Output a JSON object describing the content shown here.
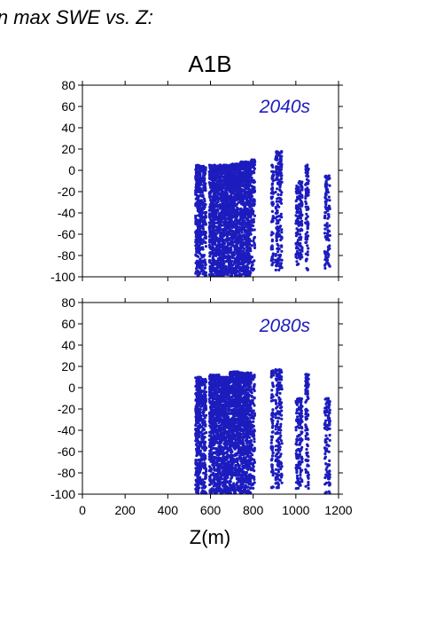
{
  "figure": {
    "title": "in max SWE vs. Z:",
    "subtitle": "A1B",
    "xlabel": "Z(m)"
  },
  "chart_data": [
    {
      "type": "scatter",
      "panel_label": "2040s",
      "xlim": [
        0,
        1200
      ],
      "ylim": [
        -100,
        80
      ],
      "xticks": [
        0,
        200,
        400,
        600,
        800,
        1000,
        1200
      ],
      "yticks": [
        -100,
        -80,
        -60,
        -40,
        -20,
        0,
        20,
        40,
        60,
        80
      ],
      "show_x_tick_labels": false,
      "marker_color": "#1c1cbe",
      "series": [
        {
          "clusters": [
            {
              "x": [
                530,
                555
              ],
              "y": [
                -100,
                5
              ],
              "density": 1.0
            },
            {
              "x": [
                555,
                580
              ],
              "y": [
                -100,
                4
              ],
              "density": 0.6
            },
            {
              "x": [
                595,
                640
              ],
              "y": [
                -100,
                5
              ],
              "density": 1.0
            },
            {
              "x": [
                640,
                690
              ],
              "y": [
                -100,
                5
              ],
              "density": 1.0
            },
            {
              "x": [
                690,
                740
              ],
              "y": [
                -100,
                6
              ],
              "density": 1.0
            },
            {
              "x": [
                740,
                790
              ],
              "y": [
                -100,
                8
              ],
              "density": 0.95
            },
            {
              "x": [
                790,
                808
              ],
              "y": [
                -95,
                10
              ],
              "density": 0.5
            },
            {
              "x": [
                885,
                895
              ],
              "y": [
                -95,
                5
              ],
              "density": 0.6
            },
            {
              "x": [
                905,
                935
              ],
              "y": [
                -95,
                18
              ],
              "density": 0.5
            },
            {
              "x": [
                1000,
                1030
              ],
              "y": [
                -90,
                -10
              ],
              "density": 0.55
            },
            {
              "x": [
                1045,
                1060
              ],
              "y": [
                -95,
                5
              ],
              "density": 0.55
            },
            {
              "x": [
                1135,
                1160
              ],
              "y": [
                -95,
                -5
              ],
              "density": 0.45
            }
          ]
        }
      ]
    },
    {
      "type": "scatter",
      "panel_label": "2080s",
      "xlim": [
        0,
        1200
      ],
      "ylim": [
        -100,
        80
      ],
      "xticks": [
        0,
        200,
        400,
        600,
        800,
        1000,
        1200
      ],
      "yticks": [
        -100,
        -80,
        -60,
        -40,
        -20,
        0,
        20,
        40,
        60,
        80
      ],
      "show_x_tick_labels": true,
      "marker_color": "#1c1cbe",
      "series": [
        {
          "clusters": [
            {
              "x": [
                530,
                555
              ],
              "y": [
                -100,
                10
              ],
              "density": 1.0
            },
            {
              "x": [
                555,
                580
              ],
              "y": [
                -100,
                8
              ],
              "density": 0.6
            },
            {
              "x": [
                595,
                640
              ],
              "y": [
                -100,
                12
              ],
              "density": 1.0
            },
            {
              "x": [
                640,
                690
              ],
              "y": [
                -100,
                10
              ],
              "density": 1.0
            },
            {
              "x": [
                690,
                740
              ],
              "y": [
                -100,
                15
              ],
              "density": 1.0
            },
            {
              "x": [
                740,
                790
              ],
              "y": [
                -100,
                14
              ],
              "density": 0.95
            },
            {
              "x": [
                790,
                808
              ],
              "y": [
                -95,
                12
              ],
              "density": 0.5
            },
            {
              "x": [
                885,
                895
              ],
              "y": [
                -95,
                16
              ],
              "density": 0.6
            },
            {
              "x": [
                905,
                935
              ],
              "y": [
                -95,
                17
              ],
              "density": 0.5
            },
            {
              "x": [
                1000,
                1030
              ],
              "y": [
                -95,
                -10
              ],
              "density": 0.55
            },
            {
              "x": [
                1045,
                1060
              ],
              "y": [
                -95,
                13
              ],
              "density": 0.55
            },
            {
              "x": [
                1135,
                1160
              ],
              "y": [
                -100,
                -10
              ],
              "density": 0.45
            }
          ]
        }
      ]
    }
  ]
}
